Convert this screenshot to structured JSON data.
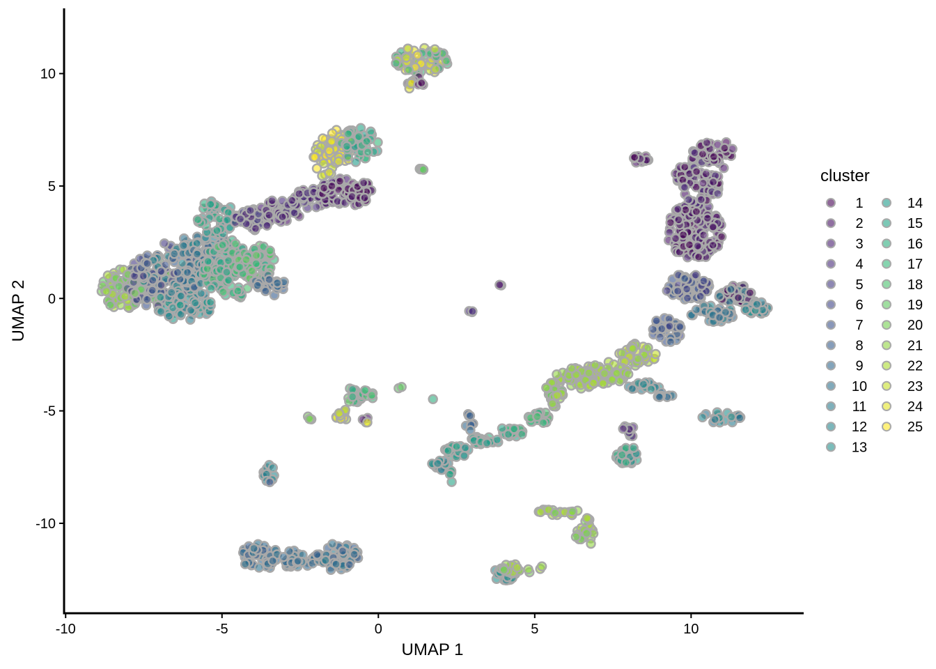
{
  "chart_data": {
    "type": "scatter",
    "title": "",
    "xlabel": "UMAP 1",
    "ylabel": "UMAP 2",
    "xlim": [
      -10.05,
      13.6
    ],
    "ylim": [
      -14,
      12.9
    ],
    "xticks": [
      -10,
      -5,
      0,
      5,
      10
    ],
    "yticks": [
      -10,
      -5,
      0,
      5,
      10
    ],
    "grid": false,
    "legend": {
      "title": "cluster",
      "placement": "right",
      "columns": 2,
      "entries": [
        "1",
        "2",
        "3",
        "4",
        "5",
        "6",
        "7",
        "8",
        "9",
        "10",
        "11",
        "12",
        "13",
        "14",
        "15",
        "16",
        "17",
        "18",
        "19",
        "20",
        "21",
        "22",
        "23",
        "24",
        "25"
      ]
    },
    "palette": "viridis",
    "point_alpha": 0.6,
    "point_outline_color": "#a9a9a9",
    "regions": [
      {
        "cx": -8.2,
        "cy": 0.4,
        "rx": 0.7,
        "ry": 0.9,
        "n": 70,
        "clusters": [
          19,
          20,
          21,
          22
        ]
      },
      {
        "cx": -7.3,
        "cy": 0.7,
        "rx": 0.8,
        "ry": 1.2,
        "n": 80,
        "clusters": [
          5,
          6,
          7,
          19,
          20
        ]
      },
      {
        "cx": -6.6,
        "cy": 1.2,
        "rx": 1.0,
        "ry": 1.3,
        "n": 90,
        "clusters": [
          5,
          6,
          7,
          8,
          12
        ]
      },
      {
        "cx": -6.2,
        "cy": -0.3,
        "rx": 0.9,
        "ry": 0.7,
        "n": 60,
        "clusters": [
          11,
          12,
          13,
          14
        ]
      },
      {
        "cx": -5.6,
        "cy": 1.6,
        "rx": 1.0,
        "ry": 1.4,
        "n": 110,
        "clusters": [
          8,
          9,
          10,
          11,
          12
        ]
      },
      {
        "cx": -5.2,
        "cy": 3.6,
        "rx": 0.6,
        "ry": 0.8,
        "n": 45,
        "clusters": [
          14,
          15,
          16
        ]
      },
      {
        "cx": -4.6,
        "cy": 1.3,
        "rx": 1.0,
        "ry": 1.3,
        "n": 100,
        "clusters": [
          15,
          16,
          17,
          18
        ]
      },
      {
        "cx": -3.9,
        "cy": 1.6,
        "rx": 0.6,
        "ry": 0.8,
        "n": 50,
        "clusters": [
          17,
          18,
          19
        ]
      },
      {
        "cx": -4.0,
        "cy": 3.5,
        "rx": 0.6,
        "ry": 0.5,
        "n": 35,
        "clusters": [
          3,
          4,
          5
        ]
      },
      {
        "cx": -3.5,
        "cy": 0.6,
        "rx": 0.5,
        "ry": 0.5,
        "n": 25,
        "clusters": [
          8,
          9
        ]
      },
      {
        "cx": -3.1,
        "cy": 3.9,
        "rx": 0.7,
        "ry": 0.5,
        "n": 40,
        "clusters": [
          2,
          3,
          4
        ]
      },
      {
        "cx": -2.2,
        "cy": 4.4,
        "rx": 0.6,
        "ry": 0.5,
        "n": 35,
        "clusters": [
          2,
          3,
          4
        ]
      },
      {
        "cx": -1.3,
        "cy": 4.8,
        "rx": 0.6,
        "ry": 0.6,
        "n": 40,
        "clusters": [
          1,
          2,
          3
        ]
      },
      {
        "cx": -0.6,
        "cy": 4.7,
        "rx": 0.4,
        "ry": 0.6,
        "n": 30,
        "clusters": [
          1,
          2
        ]
      },
      {
        "cx": -1.7,
        "cy": 6.3,
        "rx": 0.4,
        "ry": 0.9,
        "n": 45,
        "clusters": [
          23,
          24,
          25
        ]
      },
      {
        "cx": -1.2,
        "cy": 6.8,
        "rx": 0.4,
        "ry": 0.8,
        "n": 35,
        "clusters": [
          24,
          25
        ]
      },
      {
        "cx": -0.6,
        "cy": 6.8,
        "rx": 0.6,
        "ry": 0.8,
        "n": 45,
        "clusters": [
          14,
          15,
          16,
          17
        ]
      },
      {
        "cx": 1.4,
        "cy": 10.6,
        "rx": 0.9,
        "ry": 0.6,
        "n": 70,
        "clusters": [
          16,
          17,
          18,
          23,
          24,
          25
        ]
      },
      {
        "cx": 1.2,
        "cy": 9.5,
        "rx": 0.3,
        "ry": 0.4,
        "n": 10,
        "clusters": [
          1,
          24
        ]
      },
      {
        "cx": 1.4,
        "cy": 5.7,
        "rx": 0.15,
        "ry": 0.1,
        "n": 4,
        "clusters": [
          19
        ]
      },
      {
        "cx": 3.9,
        "cy": 0.6,
        "rx": 0.06,
        "ry": 0.06,
        "n": 2,
        "clusters": [
          2
        ]
      },
      {
        "cx": 2.9,
        "cy": -0.7,
        "rx": 0.15,
        "ry": 0.2,
        "n": 3,
        "clusters": [
          4
        ]
      },
      {
        "cx": 10.1,
        "cy": 3.0,
        "rx": 0.9,
        "ry": 1.3,
        "n": 150,
        "clusters": [
          1,
          2,
          3
        ]
      },
      {
        "cx": 10.3,
        "cy": 5.4,
        "rx": 0.8,
        "ry": 1.2,
        "n": 80,
        "clusters": [
          1,
          2,
          3,
          4
        ]
      },
      {
        "cx": 10.8,
        "cy": 6.6,
        "rx": 0.6,
        "ry": 0.5,
        "n": 25,
        "clusters": [
          1,
          2
        ]
      },
      {
        "cx": 8.4,
        "cy": 6.2,
        "rx": 0.3,
        "ry": 0.2,
        "n": 12,
        "clusters": [
          1,
          2
        ]
      },
      {
        "cx": 9.9,
        "cy": 0.5,
        "rx": 0.7,
        "ry": 0.6,
        "n": 60,
        "clusters": [
          5,
          6,
          7,
          8
        ]
      },
      {
        "cx": 11.4,
        "cy": 0.2,
        "rx": 0.6,
        "ry": 0.4,
        "n": 40,
        "clusters": [
          1,
          2,
          11
        ]
      },
      {
        "cx": 12.1,
        "cy": -0.4,
        "rx": 0.4,
        "ry": 0.3,
        "n": 25,
        "clusters": [
          11,
          12,
          13
        ]
      },
      {
        "cx": 10.7,
        "cy": -0.7,
        "rx": 0.7,
        "ry": 0.4,
        "n": 40,
        "clusters": [
          9,
          10,
          11,
          12
        ]
      },
      {
        "cx": 9.2,
        "cy": -1.4,
        "rx": 0.5,
        "ry": 0.6,
        "n": 35,
        "clusters": [
          6,
          7,
          8
        ]
      },
      {
        "cx": 8.3,
        "cy": -2.5,
        "rx": 0.6,
        "ry": 0.5,
        "n": 45,
        "clusters": [
          21,
          22,
          23
        ]
      },
      {
        "cx": 7.3,
        "cy": -3.3,
        "rx": 0.7,
        "ry": 0.5,
        "n": 55,
        "clusters": [
          21,
          22
        ]
      },
      {
        "cx": 6.3,
        "cy": -3.6,
        "rx": 0.7,
        "ry": 0.5,
        "n": 50,
        "clusters": [
          21,
          22
        ]
      },
      {
        "cx": 5.6,
        "cy": -4.3,
        "rx": 0.3,
        "ry": 0.6,
        "n": 30,
        "clusters": [
          19,
          20,
          21,
          22
        ]
      },
      {
        "cx": 5.1,
        "cy": -5.3,
        "rx": 0.4,
        "ry": 0.3,
        "n": 20,
        "clusters": [
          16,
          17,
          18
        ]
      },
      {
        "cx": 4.3,
        "cy": -5.9,
        "rx": 0.4,
        "ry": 0.25,
        "n": 20,
        "clusters": [
          15,
          16,
          17
        ]
      },
      {
        "cx": 3.4,
        "cy": -6.3,
        "rx": 0.5,
        "ry": 0.2,
        "n": 25,
        "clusters": [
          14,
          15,
          16
        ]
      },
      {
        "cx": 2.5,
        "cy": -6.8,
        "rx": 0.4,
        "ry": 0.25,
        "n": 20,
        "clusters": [
          13,
          14,
          15
        ]
      },
      {
        "cx": 2.0,
        "cy": -7.4,
        "rx": 0.3,
        "ry": 0.25,
        "n": 15,
        "clusters": [
          11,
          12,
          13
        ]
      },
      {
        "cx": 2.9,
        "cy": -5.5,
        "rx": 0.15,
        "ry": 0.4,
        "n": 8,
        "clusters": [
          8,
          9
        ]
      },
      {
        "cx": 2.3,
        "cy": -7.9,
        "rx": 0.1,
        "ry": 0.3,
        "n": 5,
        "clusters": [
          15
        ]
      },
      {
        "cx": 8.5,
        "cy": -3.9,
        "rx": 0.5,
        "ry": 0.2,
        "n": 15,
        "clusters": [
          11,
          12,
          13
        ]
      },
      {
        "cx": 9.3,
        "cy": -4.3,
        "rx": 0.4,
        "ry": 0.15,
        "n": 8,
        "clusters": [
          9,
          10
        ]
      },
      {
        "cx": 11.0,
        "cy": -5.3,
        "rx": 0.7,
        "ry": 0.25,
        "n": 20,
        "clusters": [
          10,
          11,
          12,
          13
        ]
      },
      {
        "cx": 8.0,
        "cy": -7.0,
        "rx": 0.4,
        "ry": 0.4,
        "n": 30,
        "clusters": [
          13,
          14,
          15,
          16
        ]
      },
      {
        "cx": 8.0,
        "cy": -5.9,
        "rx": 0.2,
        "ry": 0.3,
        "n": 8,
        "clusters": [
          3,
          14
        ]
      },
      {
        "cx": 5.8,
        "cy": -9.5,
        "rx": 0.9,
        "ry": 0.15,
        "n": 20,
        "clusters": [
          20,
          21,
          22
        ]
      },
      {
        "cx": 6.6,
        "cy": -10.4,
        "rx": 0.3,
        "ry": 0.7,
        "n": 25,
        "clusters": [
          20,
          21,
          22
        ]
      },
      {
        "cx": 4.0,
        "cy": -12.3,
        "rx": 0.4,
        "ry": 0.3,
        "n": 20,
        "clusters": [
          12,
          13
        ]
      },
      {
        "cx": 4.6,
        "cy": -12.0,
        "rx": 0.7,
        "ry": 0.25,
        "n": 20,
        "clusters": [
          20,
          21,
          22
        ]
      },
      {
        "cx": -3.8,
        "cy": -11.5,
        "rx": 0.6,
        "ry": 0.6,
        "n": 50,
        "clusters": [
          8,
          9,
          10
        ]
      },
      {
        "cx": -2.6,
        "cy": -11.6,
        "rx": 0.6,
        "ry": 0.4,
        "n": 35,
        "clusters": [
          9,
          10
        ]
      },
      {
        "cx": -1.3,
        "cy": -11.5,
        "rx": 0.7,
        "ry": 0.6,
        "n": 55,
        "clusters": [
          8,
          9,
          10,
          11
        ]
      },
      {
        "cx": -3.5,
        "cy": -7.8,
        "rx": 0.2,
        "ry": 0.4,
        "n": 12,
        "clusters": [
          7,
          12,
          14
        ]
      },
      {
        "cx": -0.8,
        "cy": -4.3,
        "rx": 0.3,
        "ry": 0.4,
        "n": 15,
        "clusters": [
          15,
          16,
          17,
          18,
          19
        ]
      },
      {
        "cx": -1.1,
        "cy": -5.2,
        "rx": 0.3,
        "ry": 0.3,
        "n": 15,
        "clusters": [
          22,
          23,
          24,
          25
        ]
      },
      {
        "cx": -0.3,
        "cy": -4.3,
        "rx": 0.25,
        "ry": 0.25,
        "n": 8,
        "clusters": [
          17,
          18
        ]
      },
      {
        "cx": -0.4,
        "cy": -5.4,
        "rx": 0.15,
        "ry": 0.2,
        "n": 4,
        "clusters": [
          2,
          24
        ]
      },
      {
        "cx": -2.2,
        "cy": -5.3,
        "rx": 0.1,
        "ry": 0.1,
        "n": 3,
        "clusters": [
          20
        ]
      },
      {
        "cx": 0.7,
        "cy": -4.0,
        "rx": 0.1,
        "ry": 0.1,
        "n": 2,
        "clusters": [
          19
        ]
      },
      {
        "cx": 1.75,
        "cy": -4.5,
        "rx": 0.05,
        "ry": 0.05,
        "n": 1,
        "clusters": [
          16
        ]
      }
    ]
  }
}
